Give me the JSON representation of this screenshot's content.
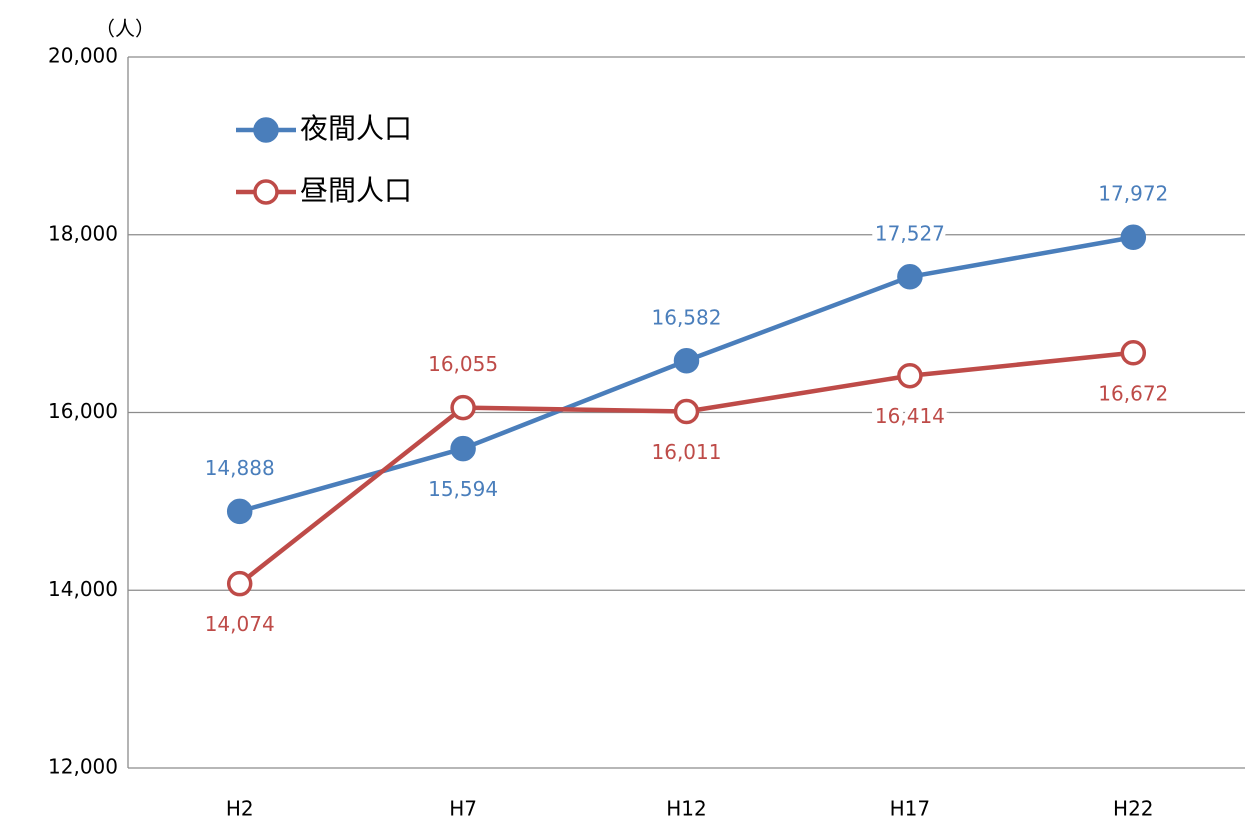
{
  "chart_data": {
    "type": "line",
    "y_unit": "（人）",
    "categories": [
      "H2",
      "H7",
      "H12",
      "H17",
      "H22"
    ],
    "series": [
      {
        "name": "夜間人口",
        "color": "#4a7ebb",
        "marker": "filled",
        "values": [
          14888,
          15594,
          16582,
          17527,
          17972
        ],
        "value_labels": [
          "14,888",
          "15,594",
          "16,582",
          "17,527",
          "17,972"
        ]
      },
      {
        "name": "昼間人口",
        "color": "#be4b48",
        "marker": "hollow",
        "values": [
          14074,
          16055,
          16011,
          16414,
          16672
        ],
        "value_labels": [
          "14,074",
          "16,055",
          "16,011",
          "16,414",
          "16,672"
        ]
      }
    ],
    "ylim": [
      12000,
      20000
    ],
    "yticks": [
      {
        "value": 12000,
        "label": "12,000"
      },
      {
        "value": 14000,
        "label": "14,000"
      },
      {
        "value": 16000,
        "label": "16,000"
      },
      {
        "value": 18000,
        "label": "18,000"
      },
      {
        "value": 20000,
        "label": "20,000"
      }
    ],
    "grid": true,
    "legend": "top-left"
  }
}
